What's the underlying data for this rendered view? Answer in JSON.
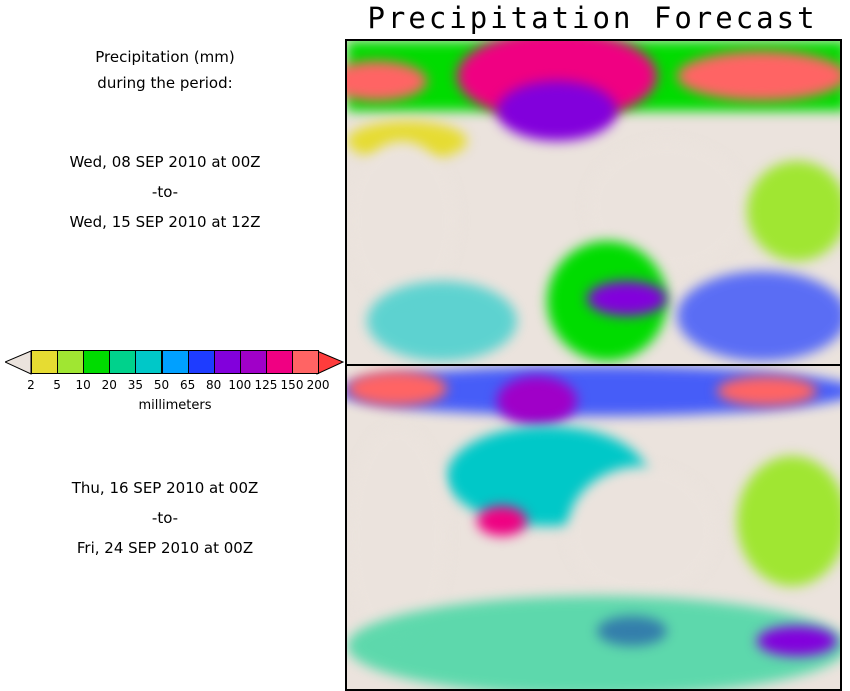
{
  "title": "Precipitation Forecast",
  "header": {
    "line1": "Precipitation (mm)",
    "line2": "during the period:"
  },
  "periods": [
    {
      "from": "Wed, 08 SEP 2010 at 00Z",
      "to_label": "-to-",
      "until": "Wed, 15 SEP 2010 at 12Z"
    },
    {
      "from": "Thu, 16 SEP 2010 at 00Z",
      "to_label": "-to-",
      "until": "Fri, 24 SEP 2010 at 00Z"
    }
  ],
  "colorbar": {
    "unit": "millimeters",
    "ticks": [
      "2",
      "5",
      "10",
      "20",
      "35",
      "50",
      "65",
      "80",
      "100",
      "125",
      "150",
      "200"
    ],
    "under_color": "#ebe3dd",
    "over_color": "#ff3c3c",
    "colors": [
      "#e6dc32",
      "#a0e632",
      "#00dc00",
      "#00d28c",
      "#00c8c8",
      "#00a0ff",
      "#1e3cff",
      "#8200dc",
      "#a000c8",
      "#f00082",
      "#ff6464"
    ]
  }
}
